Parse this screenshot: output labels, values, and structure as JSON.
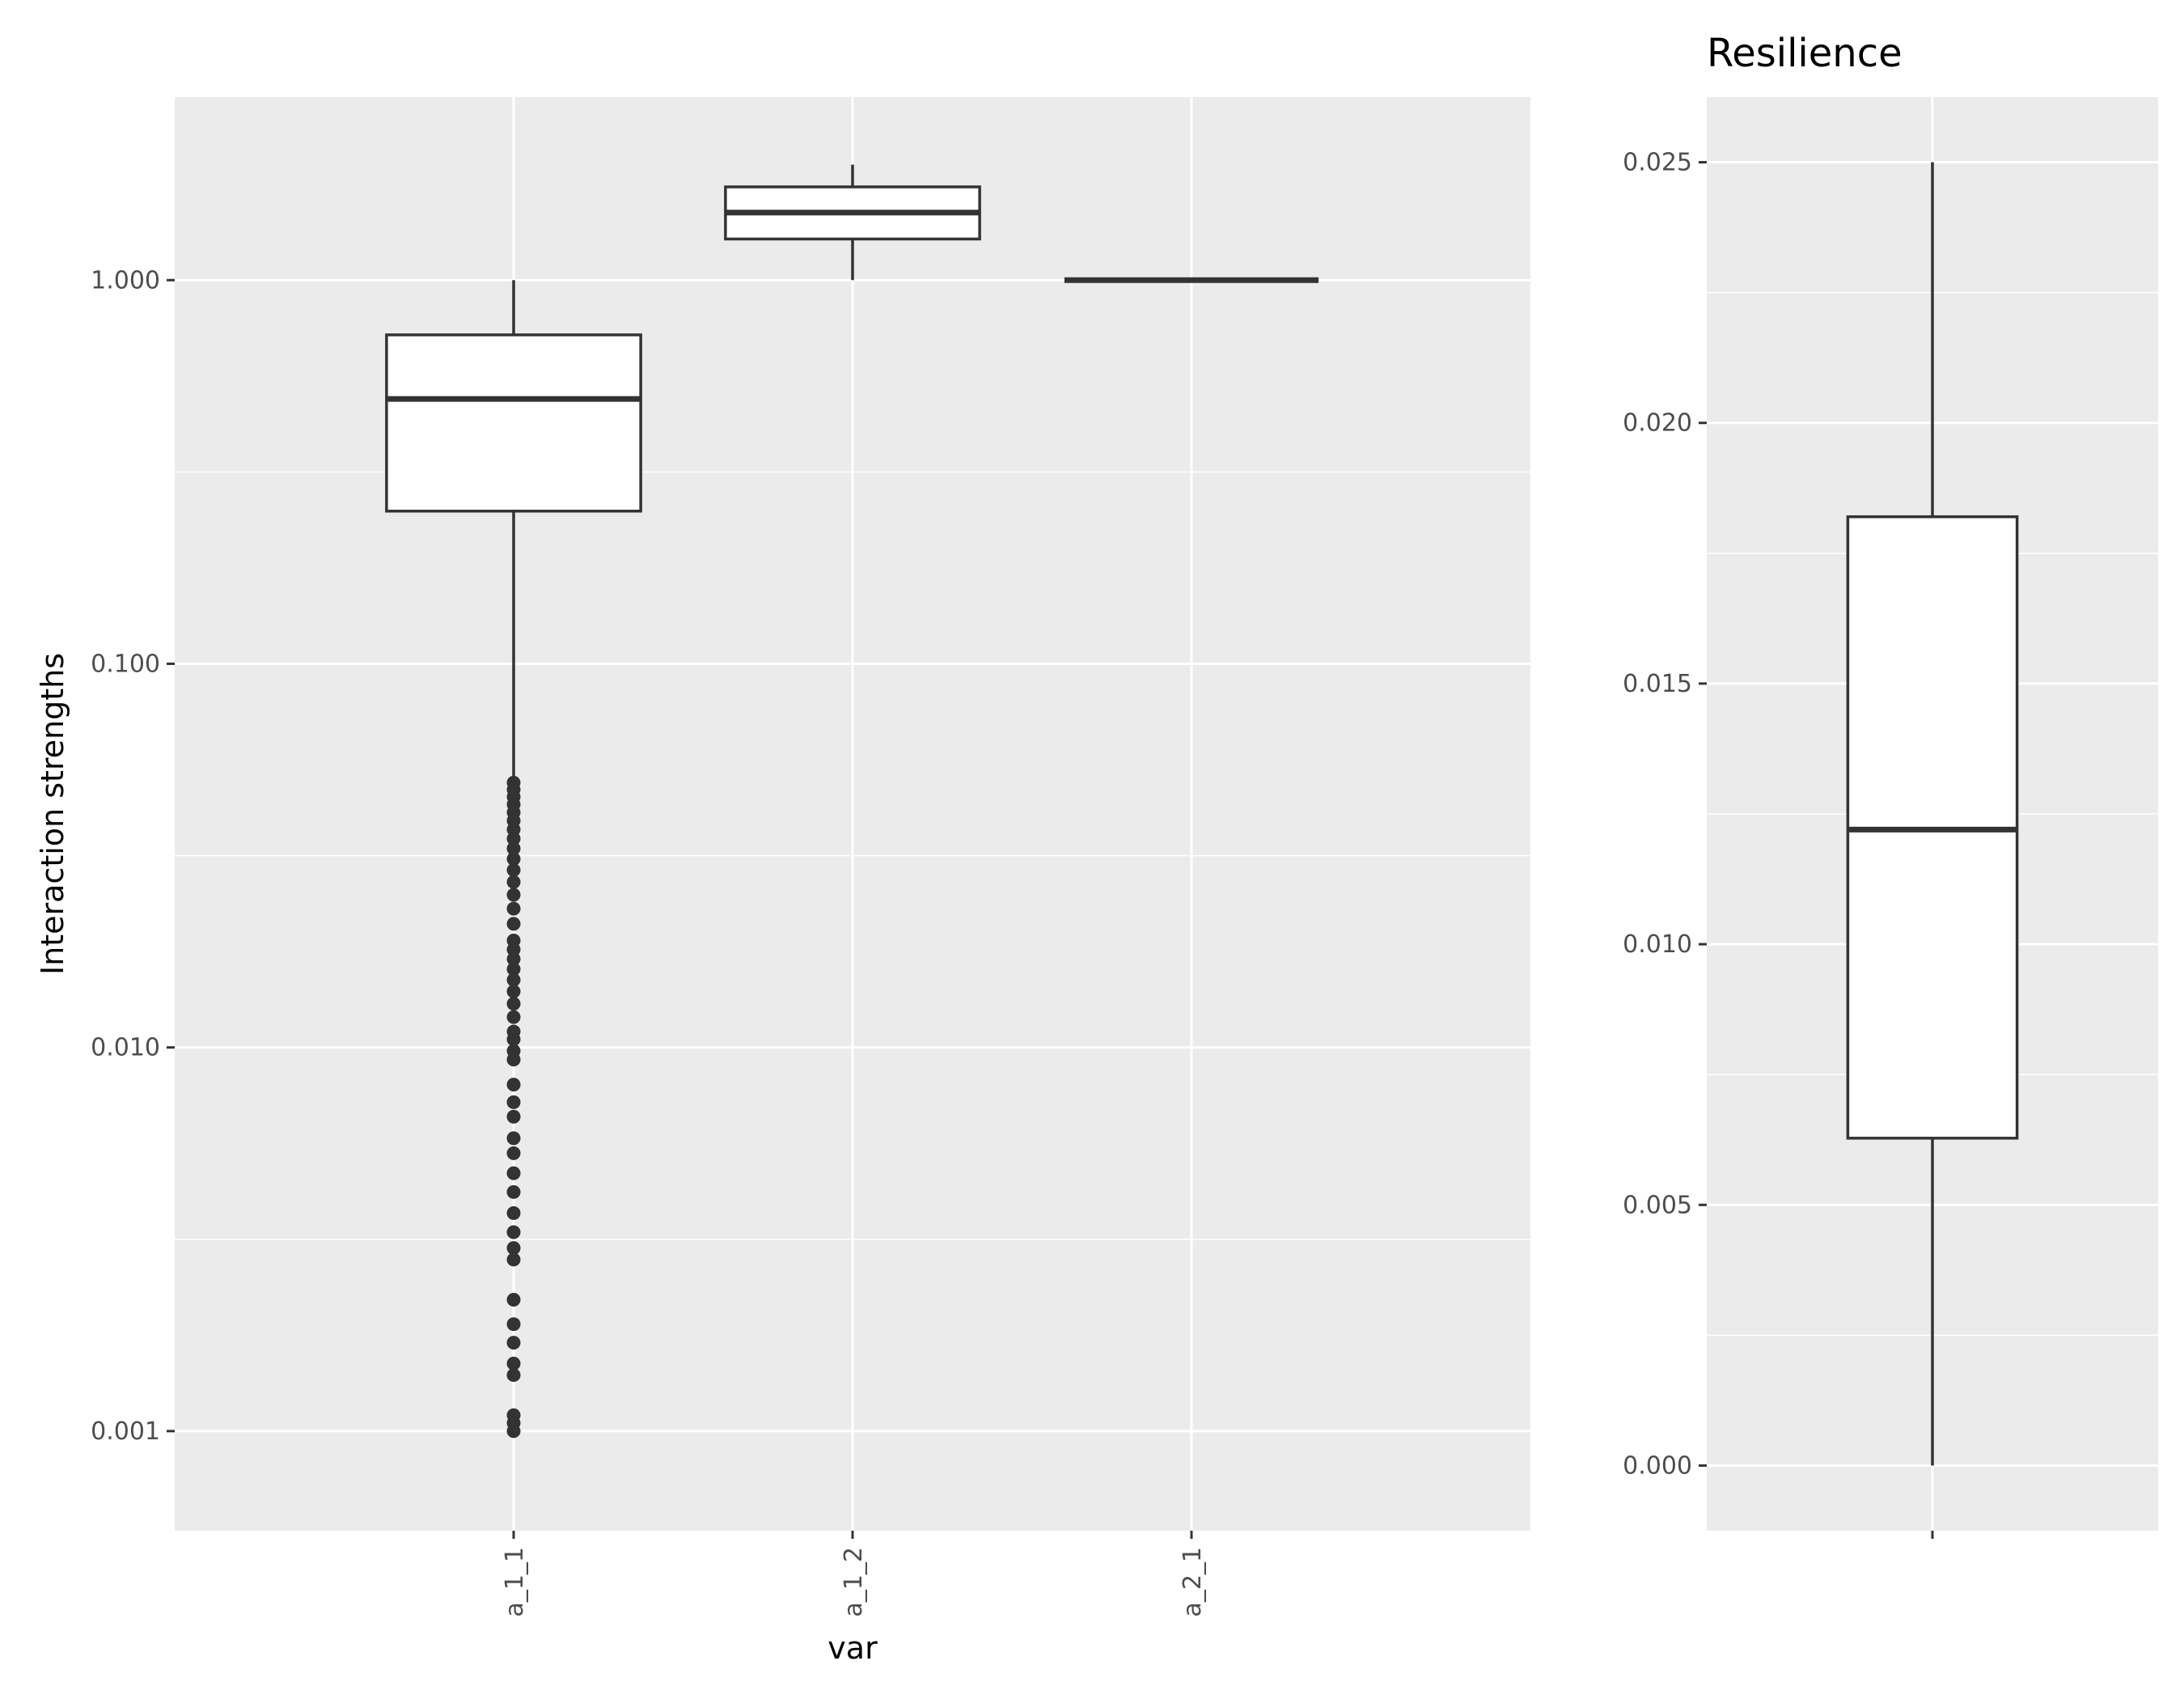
{
  "chart_data": [
    {
      "type": "box",
      "title": "",
      "xlabel": "var",
      "ylabel": "Interaction strengths",
      "y_scale": "log10",
      "ylim": [
        0.00055,
        3.0
      ],
      "y_ticks": [
        0.001,
        0.01,
        0.1,
        1.0
      ],
      "y_tick_labels": [
        "0.001",
        "0.010",
        "0.100",
        "1.000"
      ],
      "categories": [
        "a_1_1",
        "a_1_2",
        "a_2_1"
      ],
      "boxes": [
        {
          "category": "a_1_1",
          "min": 0.05,
          "q1": 0.25,
          "median": 0.49,
          "q3": 0.72,
          "max": 1.0,
          "outliers": [
            0.049,
            0.047,
            0.045,
            0.043,
            0.041,
            0.039,
            0.037,
            0.035,
            0.033,
            0.031,
            0.029,
            0.027,
            0.025,
            0.023,
            0.021,
            0.019,
            0.018,
            0.017,
            0.016,
            0.015,
            0.014,
            0.013,
            0.012,
            0.011,
            0.0105,
            0.0098,
            0.0093,
            0.008,
            0.0072,
            0.0066,
            0.0058,
            0.0053,
            0.0047,
            0.0042,
            0.0037,
            0.0033,
            0.003,
            0.0028,
            0.0022,
            0.0019,
            0.0017,
            0.0015,
            0.0014,
            0.0011,
            0.00105,
            0.001
          ]
        },
        {
          "category": "a_1_2",
          "min": 1.0,
          "q1": 1.28,
          "median": 1.5,
          "q3": 1.75,
          "max": 2.0,
          "outliers": []
        },
        {
          "category": "a_2_1",
          "min": 1.0,
          "q1": 1.0,
          "median": 1.0,
          "q3": 1.0,
          "max": 1.0,
          "outliers": []
        }
      ],
      "grid": true
    },
    {
      "type": "box",
      "title": "Resilience",
      "xlabel": "",
      "ylabel": "",
      "ylim": [
        -0.00125,
        0.02625
      ],
      "y_ticks": [
        0.0,
        0.005,
        0.01,
        0.015,
        0.02,
        0.025
      ],
      "y_tick_labels": [
        "0.000",
        "0.005",
        "0.010",
        "0.015",
        "0.020",
        "0.025"
      ],
      "categories": [
        ""
      ],
      "boxes": [
        {
          "category": "",
          "min": 0.0,
          "q1": 0.00628,
          "median": 0.0122,
          "q3": 0.0182,
          "max": 0.025,
          "outliers": []
        }
      ],
      "grid": true
    }
  ]
}
